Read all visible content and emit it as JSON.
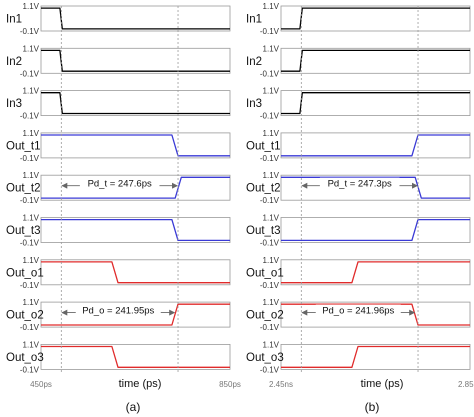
{
  "chart_data": [
    {
      "type": "line",
      "panel_label": "(a)",
      "xlabel": "time (ps)",
      "xlim": [
        450,
        850
      ],
      "x_tick_labels": [
        "450ps",
        "850ps"
      ],
      "ylim": [
        -0.1,
        1.1
      ],
      "y_tick_labels": [
        "1.1V",
        "-0.1V"
      ],
      "grid": false,
      "series": [
        {
          "name": "In1",
          "color": "#000000",
          "points": [
            [
              450,
              1.0
            ],
            [
              490,
              1.0
            ],
            [
              495,
              0.0
            ],
            [
              850,
              0.0
            ]
          ]
        },
        {
          "name": "In2",
          "color": "#000000",
          "points": [
            [
              450,
              1.0
            ],
            [
              490,
              1.0
            ],
            [
              495,
              0.0
            ],
            [
              850,
              0.0
            ]
          ]
        },
        {
          "name": "In3",
          "color": "#000000",
          "points": [
            [
              450,
              1.0
            ],
            [
              490,
              1.0
            ],
            [
              495,
              0.0
            ],
            [
              850,
              0.0
            ]
          ]
        },
        {
          "name": "Out_t1",
          "color": "#3a3ad6",
          "points": [
            [
              450,
              1.0
            ],
            [
              727,
              1.0
            ],
            [
              740,
              0.0
            ],
            [
              850,
              0.0
            ]
          ]
        },
        {
          "name": "Out_t2",
          "color": "#3a3ad6",
          "points": [
            [
              450,
              0.0
            ],
            [
              734,
              0.0
            ],
            [
              747,
              1.0
            ],
            [
              850,
              1.0
            ]
          ]
        },
        {
          "name": "Out_t3",
          "color": "#3a3ad6",
          "points": [
            [
              450,
              1.0
            ],
            [
              727,
              1.0
            ],
            [
              740,
              0.0
            ],
            [
              850,
              0.0
            ]
          ]
        },
        {
          "name": "Out_o1",
          "color": "#e02b2b",
          "points": [
            [
              450,
              1.0
            ],
            [
              600,
              1.0
            ],
            [
              613,
              0.0
            ],
            [
              850,
              0.0
            ]
          ]
        },
        {
          "name": "Out_o2",
          "color": "#e02b2b",
          "points": [
            [
              450,
              0.0
            ],
            [
              727,
              0.0
            ],
            [
              740,
              1.0
            ],
            [
              850,
              1.0
            ]
          ]
        },
        {
          "name": "Out_o3",
          "color": "#e02b2b",
          "points": [
            [
              450,
              1.0
            ],
            [
              600,
              1.0
            ],
            [
              613,
              0.0
            ],
            [
              850,
              0.0
            ]
          ]
        }
      ],
      "reference_lines_x": [
        493,
        740
      ],
      "annotations": [
        {
          "row": 4,
          "text": "Pd_t = 247.6ps",
          "x_start": 493,
          "x_end": 740
        },
        {
          "row": 7,
          "text": "Pd_o = 241.95ps",
          "x_start": 493,
          "x_end": 734
        }
      ]
    },
    {
      "type": "line",
      "panel_label": "(b)",
      "xlabel": "time (ps)",
      "xlim": [
        2450,
        2850
      ],
      "x_tick_labels": [
        "2.45ns",
        "2.85ns"
      ],
      "ylim": [
        -0.1,
        1.1
      ],
      "y_tick_labels": [
        "1.1V",
        "-0.1V"
      ],
      "grid": false,
      "series": [
        {
          "name": "In1",
          "color": "#000000",
          "points": [
            [
              2450,
              0.0
            ],
            [
              2490,
              0.0
            ],
            [
              2495,
              1.0
            ],
            [
              2850,
              1.0
            ]
          ]
        },
        {
          "name": "In2",
          "color": "#000000",
          "points": [
            [
              2450,
              0.0
            ],
            [
              2490,
              0.0
            ],
            [
              2495,
              1.0
            ],
            [
              2850,
              1.0
            ]
          ]
        },
        {
          "name": "In3",
          "color": "#000000",
          "points": [
            [
              2450,
              0.0
            ],
            [
              2490,
              0.0
            ],
            [
              2495,
              1.0
            ],
            [
              2850,
              1.0
            ]
          ]
        },
        {
          "name": "Out_t1",
          "color": "#3a3ad6",
          "points": [
            [
              2450,
              0.0
            ],
            [
              2727,
              0.0
            ],
            [
              2740,
              1.0
            ],
            [
              2850,
              1.0
            ]
          ]
        },
        {
          "name": "Out_t2",
          "color": "#3a3ad6",
          "points": [
            [
              2450,
              1.0
            ],
            [
              2734,
              1.0
            ],
            [
              2747,
              0.0
            ],
            [
              2850,
              0.0
            ]
          ]
        },
        {
          "name": "Out_t3",
          "color": "#3a3ad6",
          "points": [
            [
              2450,
              0.0
            ],
            [
              2727,
              0.0
            ],
            [
              2740,
              1.0
            ],
            [
              2850,
              1.0
            ]
          ]
        },
        {
          "name": "Out_o1",
          "color": "#e02b2b",
          "points": [
            [
              2450,
              0.0
            ],
            [
              2600,
              0.0
            ],
            [
              2613,
              1.0
            ],
            [
              2850,
              1.0
            ]
          ]
        },
        {
          "name": "Out_o2",
          "color": "#e02b2b",
          "points": [
            [
              2450,
              1.0
            ],
            [
              2727,
              1.0
            ],
            [
              2740,
              0.0
            ],
            [
              2850,
              0.0
            ]
          ]
        },
        {
          "name": "Out_o3",
          "color": "#e02b2b",
          "points": [
            [
              2450,
              0.0
            ],
            [
              2600,
              0.0
            ],
            [
              2613,
              1.0
            ],
            [
              2850,
              1.0
            ]
          ]
        }
      ],
      "reference_lines_x": [
        2493,
        2740
      ],
      "annotations": [
        {
          "row": 4,
          "text": "Pd_t = 247.3ps",
          "x_start": 2493,
          "x_end": 2740
        },
        {
          "row": 7,
          "text": "Pd_o = 241.96ps",
          "x_start": 2493,
          "x_end": 2734
        }
      ]
    }
  ]
}
